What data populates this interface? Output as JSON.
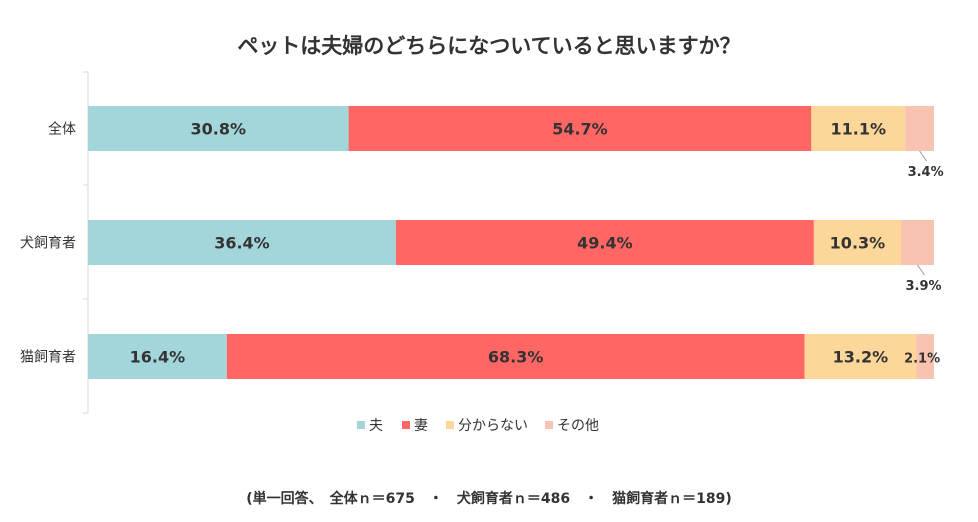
{
  "chart_data": {
    "type": "bar",
    "orientation": "horizontal",
    "stacked": true,
    "percent": true,
    "title": "ペットは夫婦のどちらになついていると思いますか？",
    "categories": [
      "全体",
      "犬飼育者",
      "猫飼育者"
    ],
    "series": [
      {
        "name": "夫",
        "values": [
          30.8,
          36.4,
          16.4
        ],
        "labels": [
          "30.8%",
          "36.4%",
          "16.4%"
        ],
        "color": "#A3D6DA"
      },
      {
        "name": "妻",
        "values": [
          54.7,
          49.4,
          68.3
        ],
        "labels": [
          "54.7%",
          "49.4%",
          "68.3%"
        ],
        "color": "#FF6664"
      },
      {
        "name": "分からない",
        "values": [
          11.1,
          10.3,
          13.2
        ],
        "labels": [
          "11.1%",
          "10.3%",
          "13.2%"
        ],
        "color": "#FDD699"
      },
      {
        "name": "その他",
        "values": [
          3.4,
          3.9,
          2.1
        ],
        "labels": [
          "3.4%",
          "3.9%",
          "2.1%"
        ],
        "color": "#F8C3B0"
      }
    ],
    "xlim": [
      0,
      100
    ],
    "legend": "bottom",
    "note": "(単一回答、　全体ｎ＝675　・　犬飼育者ｎ＝486　・　猫飼育者ｎ＝189)"
  }
}
